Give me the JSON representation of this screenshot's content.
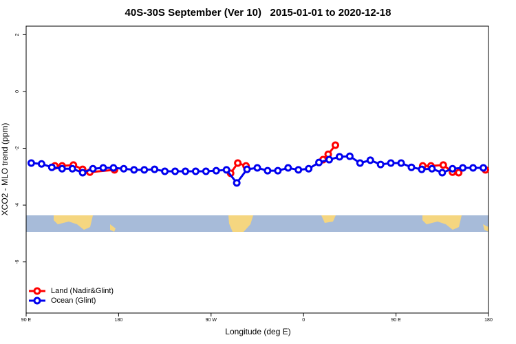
{
  "chart_data": {
    "type": "line",
    "title": "40S-30S September (Ver 10)   2015-01-01 to 2020-12-18",
    "x_label": "Longitude (deg E)",
    "y_label": "XCO2 - MLO trend (ppm)",
    "xlim": [
      90,
      540
    ],
    "xticks": [
      {
        "value": 90,
        "label": "90 E"
      },
      180,
      {
        "value": 270,
        "label": "90 W"
      },
      {
        "value": 360,
        "label": "0"
      },
      {
        "value": 450,
        "label": "90 E"
      },
      {
        "value": 540,
        "label": "180"
      }
    ],
    "ylim": [
      -7.8,
      2.3
    ],
    "yticks": [
      2,
      0,
      -2,
      -4,
      -6
    ],
    "legend": "bottom-left",
    "series": [
      {
        "name": "Land (Nadir&Glint)",
        "color": "#ff0000",
        "x": [
          118,
          125,
          136,
          145,
          152,
          176,
          null,
          289,
          296,
          304,
          null,
          379,
          384,
          391,
          null,
          476,
          484,
          496,
          505,
          511,
          null,
          537
        ],
        "values": [
          -2.62,
          -2.62,
          -2.59,
          -2.74,
          -2.84,
          -2.76,
          null,
          -2.88,
          -2.52,
          -2.62,
          null,
          -2.4,
          -2.21,
          -1.89,
          null,
          -2.62,
          -2.62,
          -2.59,
          -2.84,
          -2.86,
          null,
          -2.76
        ]
      },
      {
        "name": "Ocean (Glint)",
        "color": "#0000ee",
        "x": [
          95,
          105,
          115,
          125,
          135,
          145,
          155,
          165,
          175,
          185,
          195,
          205,
          215,
          225,
          235,
          245,
          255,
          265,
          275,
          285,
          295,
          305,
          315,
          325,
          335,
          345,
          355,
          365,
          375,
          385,
          395,
          405,
          415,
          425,
          435,
          445,
          455,
          465,
          475,
          485,
          495,
          505,
          515,
          525,
          535
        ],
        "values": [
          -2.52,
          -2.55,
          -2.67,
          -2.72,
          -2.72,
          -2.86,
          -2.72,
          -2.69,
          -2.69,
          -2.72,
          -2.76,
          -2.76,
          -2.74,
          -2.81,
          -2.81,
          -2.81,
          -2.81,
          -2.81,
          -2.79,
          -2.76,
          -3.22,
          -2.74,
          -2.69,
          -2.79,
          -2.79,
          -2.69,
          -2.76,
          -2.72,
          -2.5,
          -2.4,
          -2.3,
          -2.28,
          -2.52,
          -2.42,
          -2.57,
          -2.52,
          -2.52,
          -2.67,
          -2.74,
          -2.72,
          -2.86,
          -2.72,
          -2.69,
          -2.69,
          -2.69
        ]
      }
    ]
  }
}
